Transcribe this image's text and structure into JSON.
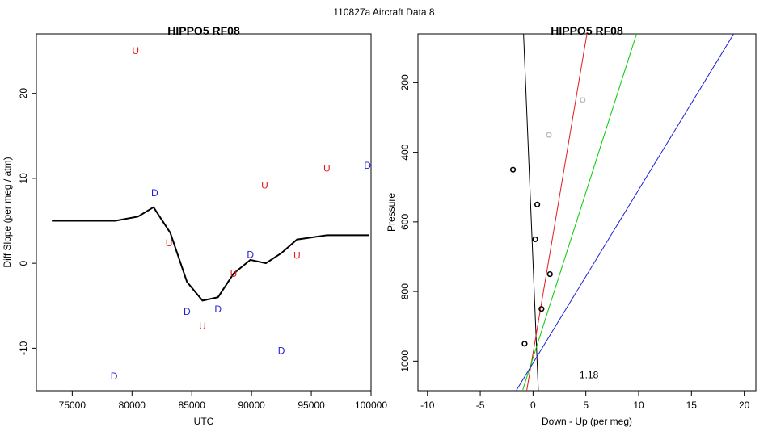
{
  "figure": {
    "title": "110827a   Aircraft Data 8"
  },
  "chart_data": [
    {
      "type": "scatter",
      "title": "HIPPO5 RF08",
      "xlabel": "UTC",
      "ylabel": "Diff Slope (per meg / atm)",
      "xlim": [
        72000,
        100000
      ],
      "ylim": [
        -15,
        27
      ],
      "x_ticks": [
        75000,
        80000,
        85000,
        90000,
        95000,
        100000
      ],
      "y_ticks": [
        -10,
        0,
        10,
        20
      ],
      "grid": false,
      "points": [
        {
          "label": "U",
          "x": 80300,
          "y": 25.0,
          "color": "#e41a1c"
        },
        {
          "label": "D",
          "x": 81900,
          "y": 8.3,
          "color": "#1f1fd6"
        },
        {
          "label": "U",
          "x": 83100,
          "y": 2.4,
          "color": "#e41a1c"
        },
        {
          "label": "D",
          "x": 84600,
          "y": -5.7,
          "color": "#1f1fd6"
        },
        {
          "label": "U",
          "x": 85900,
          "y": -7.4,
          "color": "#e41a1c"
        },
        {
          "label": "D",
          "x": 87200,
          "y": -5.4,
          "color": "#1f1fd6"
        },
        {
          "label": "U",
          "x": 88500,
          "y": -1.2,
          "color": "#e41a1c"
        },
        {
          "label": "D",
          "x": 89900,
          "y": 1.0,
          "color": "#1f1fd6"
        },
        {
          "label": "U",
          "x": 91100,
          "y": 9.2,
          "color": "#e41a1c"
        },
        {
          "label": "D",
          "x": 92500,
          "y": -10.3,
          "color": "#1f1fd6"
        },
        {
          "label": "U",
          "x": 93800,
          "y": 0.9,
          "color": "#e41a1c"
        },
        {
          "label": "U",
          "x": 96300,
          "y": 11.2,
          "color": "#e41a1c"
        },
        {
          "label": "D",
          "x": 99700,
          "y": 11.5,
          "color": "#1f1fd6"
        },
        {
          "label": "D",
          "x": 78500,
          "y": -13.3,
          "color": "#1f1fd6"
        }
      ],
      "smooth_line": {
        "color": "#000000",
        "x": [
          73300,
          78600,
          80500,
          81800,
          83200,
          84600,
          85900,
          87200,
          88500,
          89900,
          91200,
          92500,
          93800,
          96300,
          99800
        ],
        "y": [
          5.0,
          5.0,
          5.5,
          6.6,
          3.6,
          -2.2,
          -4.4,
          -4.0,
          -1.2,
          0.4,
          0.0,
          1.2,
          2.8,
          3.3,
          3.3
        ]
      }
    },
    {
      "type": "scatter",
      "title": "HIPPO5 RF08",
      "xlabel": "Down - Up (per meg)",
      "ylabel": "Pressure",
      "xlim": [
        -10.9,
        21.1
      ],
      "ylim": [
        1085,
        60
      ],
      "y_reversed": true,
      "x_ticks": [
        -10,
        -5,
        0,
        5,
        10,
        15,
        20
      ],
      "y_ticks": [
        200,
        400,
        600,
        800,
        1000
      ],
      "grid": false,
      "points": [
        {
          "x": 4.7,
          "y": 250,
          "color": "#bbbbbb"
        },
        {
          "x": 1.5,
          "y": 350,
          "color": "#bbbbbb"
        },
        {
          "x": -1.9,
          "y": 450,
          "color": "#000000"
        },
        {
          "x": 0.4,
          "y": 550,
          "color": "#000000"
        },
        {
          "x": 0.2,
          "y": 650,
          "color": "#000000"
        },
        {
          "x": 1.6,
          "y": 750,
          "color": "#000000"
        },
        {
          "x": 0.8,
          "y": 850,
          "color": "#000000"
        },
        {
          "x": -0.8,
          "y": 950,
          "color": "#000000"
        }
      ],
      "lines": [
        {
          "color": "#000000",
          "p1": [
            -0.9,
            60
          ],
          "p2": [
            0.5,
            1085
          ]
        },
        {
          "color": "#e41a1c",
          "p1": [
            5.1,
            60
          ],
          "p2": [
            -0.6,
            1085
          ]
        },
        {
          "color": "#00cc00",
          "p1": [
            9.8,
            60
          ],
          "p2": [
            -1.0,
            1085
          ]
        },
        {
          "color": "#1f1fd6",
          "p1": [
            19.0,
            60
          ],
          "p2": [
            -1.6,
            1085
          ]
        }
      ],
      "annotation": {
        "text": "1.18",
        "x": 5.3,
        "y": 1040
      }
    }
  ]
}
